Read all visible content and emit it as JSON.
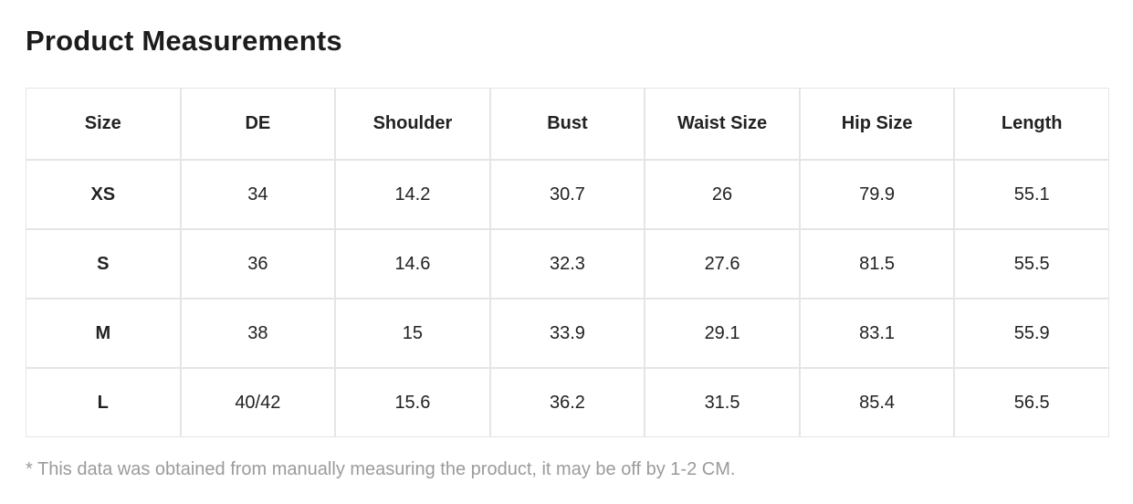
{
  "page": {
    "title": "Product Measurements",
    "footnote": "* This data was obtained from manually measuring the product, it may be off by 1-2 CM."
  },
  "colors": {
    "border": "#e5e5e5",
    "title_text": "#1c1c1c",
    "body_text": "#222222",
    "footnote_text": "#9b9b9b",
    "background": "#ffffff"
  },
  "table": {
    "head": [
      "Size",
      "DE",
      "Shoulder",
      "Bust",
      "Waist Size",
      "Hip Size",
      "Length"
    ],
    "rows": [
      [
        "XS",
        "34",
        "14.2",
        "30.7",
        "26",
        "79.9",
        "55.1"
      ],
      [
        "S",
        "36",
        "14.6",
        "32.3",
        "27.6",
        "81.5",
        "55.5"
      ],
      [
        "M",
        "38",
        "15",
        "33.9",
        "29.1",
        "83.1",
        "55.9"
      ],
      [
        "L",
        "40/42",
        "15.6",
        "36.2",
        "31.5",
        "85.4",
        "56.5"
      ]
    ]
  }
}
